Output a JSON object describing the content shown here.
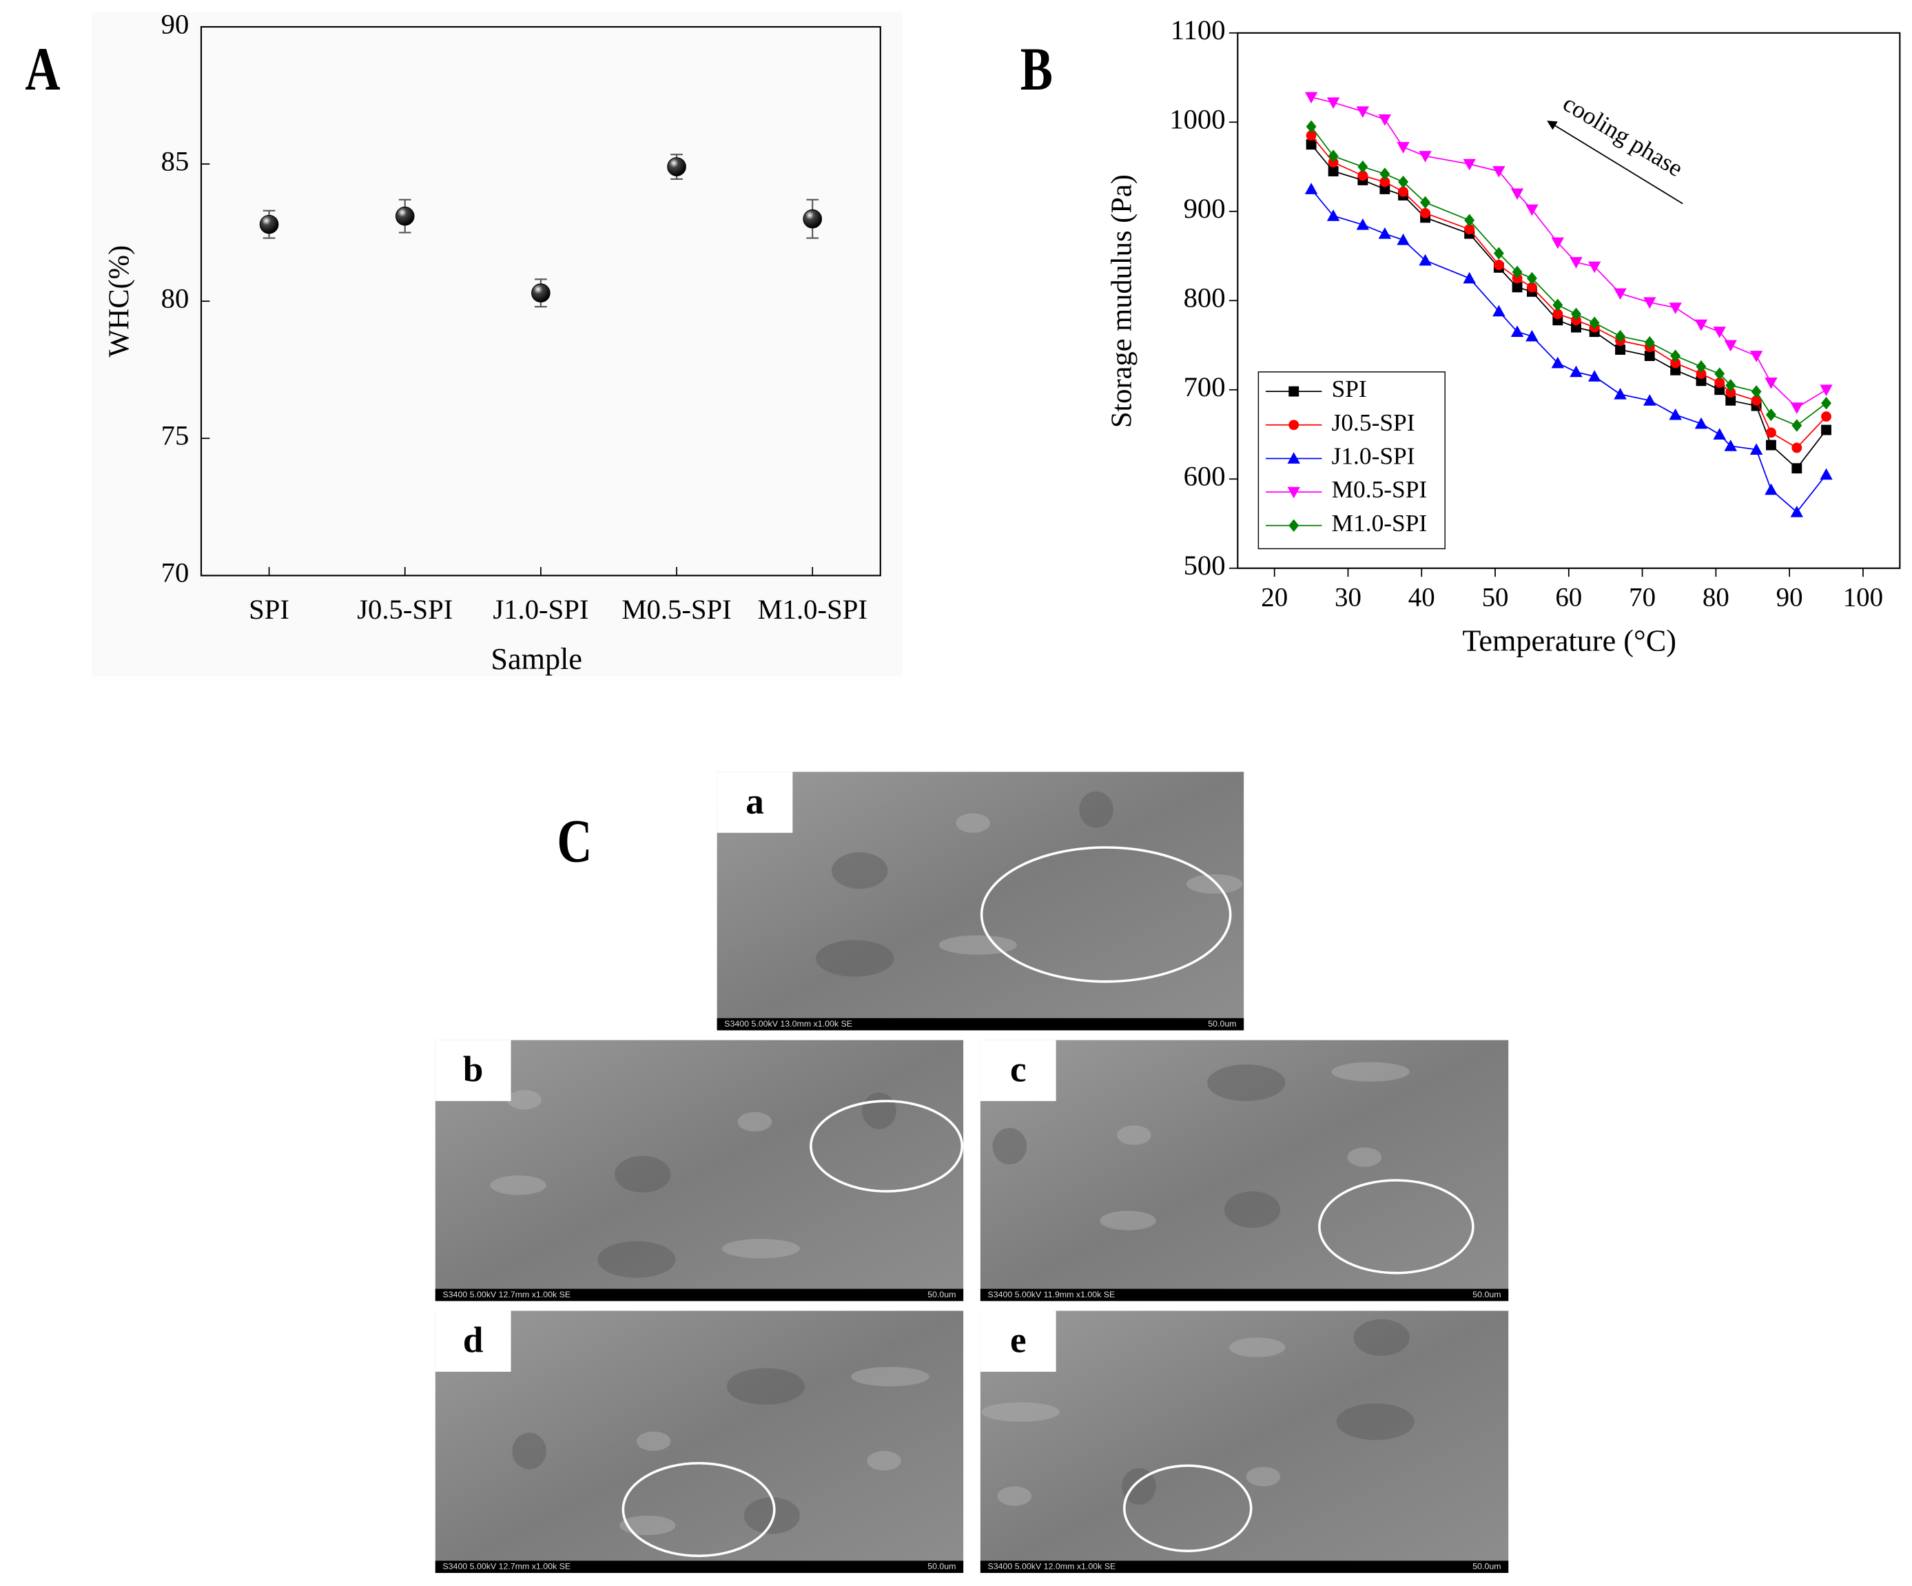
{
  "chart_data": [
    {
      "type": "errorbar",
      "panel_label": "A",
      "xlabel": "Sample",
      "ylabel": "WHC(%)",
      "categories": [
        "SPI",
        "J0.5-SPI",
        "J1.0-SPI",
        "M0.5-SPI",
        "M1.0-SPI"
      ],
      "series": [
        {
          "color": "#000000",
          "values": [
            82.8,
            83.1,
            80.3,
            84.9,
            83.0
          ],
          "errors": [
            0.5,
            0.6,
            0.5,
            0.45,
            0.7
          ]
        }
      ],
      "ylim": [
        70,
        90
      ],
      "yticks": [
        70,
        75,
        80,
        85,
        90
      ]
    },
    {
      "type": "line",
      "panel_label": "B",
      "xlabel": "Temperature (°C)",
      "ylabel": "Storage mudulus (Pa)",
      "annotation": "cooling phase",
      "legend": "lower left",
      "x": [
        25,
        28,
        32,
        35,
        37.5,
        40.5,
        46.5,
        50.5,
        53,
        55,
        58.5,
        61,
        63.5,
        67,
        71,
        74.5,
        78,
        80.5,
        82,
        85.5,
        87.5,
        91,
        95
      ],
      "series": [
        {
          "name": "SPI",
          "color": "#000000",
          "marker": "square",
          "values": [
            975,
            945,
            935,
            925,
            918,
            893,
            875,
            837,
            815,
            810,
            778,
            770,
            765,
            745,
            738,
            722,
            710,
            700,
            688,
            682,
            638,
            612,
            655
          ]
        },
        {
          "name": "J0.5-SPI",
          "color": "#ff0000",
          "marker": "circle",
          "values": [
            985,
            955,
            940,
            933,
            922,
            898,
            880,
            840,
            825,
            815,
            785,
            778,
            770,
            755,
            748,
            730,
            718,
            708,
            697,
            688,
            652,
            635,
            670
          ]
        },
        {
          "name": "J1.0-SPI",
          "color": "#0000ff",
          "marker": "triangle-up",
          "values": [
            925,
            895,
            885,
            875,
            868,
            845,
            825,
            788,
            765,
            760,
            730,
            720,
            715,
            695,
            688,
            672,
            662,
            650,
            637,
            633,
            588,
            563,
            605
          ]
        },
        {
          "name": "M0.5-SPI",
          "color": "#ff00ff",
          "marker": "triangle-down",
          "values": [
            1028,
            1022,
            1012,
            1003,
            972,
            962,
            953,
            945,
            920,
            902,
            865,
            843,
            838,
            808,
            798,
            792,
            773,
            765,
            750,
            738,
            708,
            680,
            700
          ]
        },
        {
          "name": "M1.0-SPI",
          "color": "#008000",
          "marker": "diamond",
          "values": [
            995,
            962,
            950,
            942,
            933,
            910,
            890,
            853,
            832,
            825,
            795,
            785,
            775,
            760,
            753,
            738,
            726,
            718,
            705,
            698,
            672,
            660,
            685
          ]
        }
      ],
      "xlim": [
        15,
        105
      ],
      "xticks": [
        20,
        30,
        40,
        50,
        60,
        70,
        80,
        90,
        100
      ],
      "ylim": [
        500,
        1100
      ],
      "yticks": [
        500,
        600,
        700,
        800,
        900,
        1000,
        1100
      ]
    }
  ],
  "sem_panel": {
    "label": "C",
    "images": [
      {
        "label": "a",
        "info": "S3400 5.00kV 13.0mm x1.00k SE",
        "scale": "50.0um"
      },
      {
        "label": "b",
        "info": "S3400 5.00kV 12.7mm x1.00k SE",
        "scale": "50.0um"
      },
      {
        "label": "c",
        "info": "S3400 5.00kV 11.9mm x1.00k SE",
        "scale": "50.0um"
      },
      {
        "label": "d",
        "info": "S3400 5.00kV 12.7mm x1.00k SE",
        "scale": "50.0um"
      },
      {
        "label": "e",
        "info": "S3400 5.00kV 12.0mm x1.00k SE",
        "scale": "50.0um"
      }
    ]
  }
}
